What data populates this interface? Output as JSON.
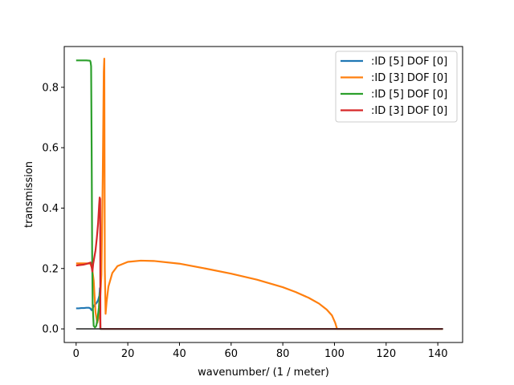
{
  "chart_data": {
    "type": "line",
    "title": "",
    "xlabel": "wavenumber/ (1 / meter)",
    "ylabel": "transmission",
    "xlim": [
      -4.6,
      149.6
    ],
    "ylim": [
      -0.045,
      0.935
    ],
    "xticks": [
      0,
      20,
      40,
      60,
      80,
      100,
      120,
      140
    ],
    "yticks": [
      0.0,
      0.2,
      0.4,
      0.6,
      0.8
    ],
    "xtick_labels": [
      "0",
      "20",
      "40",
      "60",
      "80",
      "100",
      "120",
      "140"
    ],
    "ytick_labels": [
      "0.0",
      "0.2",
      "0.4",
      "0.6",
      "0.8"
    ],
    "grid": false,
    "legend_position": "top-right",
    "series": [
      {
        "name": ":ID [5] DOF [0]",
        "color": "#1f77b4",
        "x": [
          0,
          1,
          2,
          3,
          4,
          5,
          5.5,
          6,
          6.3,
          6.6,
          7,
          7.5,
          8,
          8.5,
          9,
          9.2,
          9.4,
          10,
          20,
          40,
          60,
          80,
          100,
          120,
          142
        ],
        "y": [
          0.068,
          0.068,
          0.069,
          0.069,
          0.07,
          0.07,
          0.068,
          0.062,
          0.065,
          0.072,
          0.078,
          0.082,
          0.087,
          0.095,
          0.11,
          0.135,
          0.0,
          0.0,
          0.0,
          0.0,
          0.0,
          0.0,
          0.0,
          0.0,
          0.0
        ]
      },
      {
        "name": ":ID [3] DOF [0]",
        "color": "#ff7f0e",
        "x": [
          0,
          2,
          4,
          5.5,
          6.2,
          6.8,
          7.5,
          8.2,
          9,
          9.8,
          10.3,
          10.7,
          10.9,
          11.1,
          11.4,
          11.8,
          12.5,
          14,
          16,
          20,
          25,
          30,
          40,
          50,
          60,
          70,
          80,
          85,
          90,
          94,
          97,
          99,
          100.3,
          101,
          110,
          120,
          142
        ],
        "y": [
          0.217,
          0.217,
          0.217,
          0.216,
          0.2,
          0.16,
          0.055,
          0.02,
          0.05,
          0.18,
          0.5,
          0.85,
          0.895,
          0.2,
          0.05,
          0.09,
          0.14,
          0.185,
          0.208,
          0.222,
          0.226,
          0.225,
          0.216,
          0.2,
          0.183,
          0.163,
          0.138,
          0.122,
          0.103,
          0.084,
          0.064,
          0.045,
          0.02,
          0.0,
          0.0,
          0.0,
          0.0
        ]
      },
      {
        "name": ":ID [5] DOF [0]",
        "color": "#2ca02c",
        "x": [
          0,
          2,
          4,
          5.4,
          5.6,
          5.8,
          6.0,
          6.2,
          6.4,
          6.8,
          7.3,
          7.8,
          8.3,
          8.8,
          9.2,
          9.4,
          10,
          20,
          40,
          60,
          80,
          100,
          120,
          142
        ],
        "y": [
          0.889,
          0.889,
          0.889,
          0.888,
          0.883,
          0.87,
          0.6,
          0.25,
          0.08,
          0.01,
          0.005,
          0.01,
          0.035,
          0.07,
          0.12,
          0.0,
          0.0,
          0.0,
          0.0,
          0.0,
          0.0,
          0.0,
          0.0,
          0.0
        ]
      },
      {
        "name": ":ID [3] DOF [0]",
        "color": "#d62728",
        "x": [
          0,
          1,
          2,
          3,
          4,
          5,
          5.6,
          6.0,
          6.3,
          6.6,
          7.0,
          7.5,
          8.0,
          8.5,
          8.9,
          9.1,
          9.3,
          9.4,
          10,
          20,
          40,
          60,
          80,
          100,
          120,
          142
        ],
        "y": [
          0.21,
          0.211,
          0.212,
          0.213,
          0.215,
          0.218,
          0.22,
          0.205,
          0.19,
          0.215,
          0.235,
          0.26,
          0.3,
          0.35,
          0.41,
          0.435,
          0.43,
          0.0,
          0.0,
          0.0,
          0.0,
          0.0,
          0.0,
          0.0,
          0.0,
          0.0
        ]
      }
    ],
    "overlay": {
      "color": "#222222",
      "x": [
        0,
        142
      ],
      "y": [
        0.0,
        0.0
      ]
    }
  }
}
